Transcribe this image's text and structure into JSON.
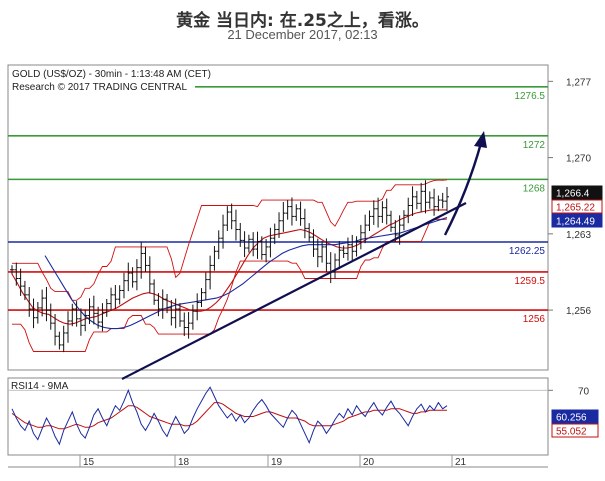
{
  "header": {
    "title": "黄金 当日内: 在.25之上，看涨。",
    "date": "21 December 2017, 02:13"
  },
  "chart_data": {
    "type": "candlestick",
    "instrument_label": "GOLD (US$/OZ) - 30min - 1:13:48 AM (CET)",
    "research_label": "Research © 2017 TRADING CENTRAL",
    "x_ticks": [
      "15",
      "18",
      "19",
      "20",
      "21"
    ],
    "price_axis": {
      "ticks": [
        1277,
        1270,
        1263,
        1256
      ],
      "tick_labels": [
        "1,277",
        "1,270",
        "1,263",
        "1,256"
      ],
      "ylim": [
        1250.5,
        1278.5
      ]
    },
    "price_levels": [
      {
        "label": "1276.5",
        "value": 1276.5,
        "color": "#3a9a3a",
        "kind": "resistance"
      },
      {
        "label": "1272",
        "value": 1272,
        "color": "#3a9a3a",
        "kind": "resistance"
      },
      {
        "label": "1268",
        "value": 1268,
        "color": "#3a9a3a",
        "kind": "resistance"
      },
      {
        "label": "1262.25",
        "value": 1262.25,
        "color": "#1a2aa0",
        "kind": "pivot"
      },
      {
        "label": "1259.5",
        "value": 1259.5,
        "color": "#d01010",
        "kind": "support"
      },
      {
        "label": "1256",
        "value": 1256,
        "color": "#d01010",
        "kind": "support"
      }
    ],
    "price_badges": [
      {
        "label": "1,266.4",
        "value": 1266.4,
        "bg": "#111111",
        "fg": "#ffffff"
      },
      {
        "label": "1,265.22",
        "value": 1265.22,
        "bg": "#ffffff",
        "fg": "#c01010"
      },
      {
        "label": "1,264.49",
        "value": 1264.49,
        "bg": "#1a2aa0",
        "fg": "#ffffff"
      }
    ],
    "price_series": [
      1259.7,
      1258.9,
      1258.2,
      1257.4,
      1256.1,
      1255.3,
      1256.2,
      1257.1,
      1256.0,
      1254.8,
      1253.6,
      1252.8,
      1253.9,
      1255.0,
      1256.1,
      1255.2,
      1254.6,
      1255.5,
      1256.3,
      1255.7,
      1254.9,
      1255.8,
      1256.6,
      1257.4,
      1257.0,
      1257.8,
      1258.7,
      1259.4,
      1258.6,
      1259.9,
      1261.2,
      1260.1,
      1258.4,
      1256.9,
      1256.1,
      1257.0,
      1256.2,
      1255.3,
      1256.1,
      1255.0,
      1254.4,
      1254.8,
      1255.9,
      1256.7,
      1257.6,
      1258.8,
      1260.1,
      1261.4,
      1262.6,
      1263.8,
      1265.0,
      1264.2,
      1263.4,
      1262.4,
      1261.7,
      1262.5,
      1261.6,
      1262.3,
      1261.1,
      1261.8,
      1262.6,
      1263.4,
      1264.2,
      1264.9,
      1265.5,
      1264.6,
      1265.3,
      1264.4,
      1263.5,
      1262.7,
      1261.6,
      1260.9,
      1261.8,
      1260.3,
      1259.5,
      1260.6,
      1261.5,
      1261.2,
      1262.0,
      1261.4,
      1262.3,
      1263.1,
      1263.8,
      1264.6,
      1265.3,
      1264.6,
      1265.4,
      1264.7,
      1263.6,
      1262.9,
      1263.8,
      1264.7,
      1265.6,
      1266.4,
      1265.8,
      1266.9,
      1265.9,
      1266.3,
      1265.5,
      1266.1,
      1266.0,
      1266.4
    ],
    "ma_red_series": [
      1259.3,
      1258.5,
      1257.6,
      1256.9,
      1256.2,
      1255.9,
      1255.7,
      1255.6,
      1255.3,
      1255.0,
      1254.8,
      1254.7,
      1254.8,
      1255.0,
      1255.2,
      1255.3,
      1255.4,
      1255.6,
      1255.8,
      1256.0,
      1256.2,
      1256.5,
      1256.8,
      1257.1,
      1257.3,
      1257.5,
      1257.6,
      1257.5,
      1257.3,
      1257.0,
      1256.8,
      1256.6,
      1256.4,
      1256.2,
      1256.0,
      1255.9,
      1255.9,
      1256.0,
      1256.3,
      1256.7,
      1257.2,
      1257.9,
      1258.6,
      1259.4,
      1260.2,
      1261.0,
      1261.7,
      1262.2,
      1262.6,
      1262.8,
      1262.9,
      1263.0,
      1263.1,
      1263.2,
      1263.3,
      1263.4,
      1263.3,
      1263.1,
      1262.8,
      1262.5,
      1262.2,
      1262.0,
      1261.8,
      1261.7,
      1261.7,
      1261.8,
      1262.0,
      1262.3,
      1262.6,
      1262.9,
      1263.2,
      1263.5,
      1263.8,
      1264.0,
      1264.3,
      1264.5,
      1264.7,
      1264.9,
      1265.0,
      1265.1,
      1265.2,
      1265.2,
      1265.2,
      1265.2
    ],
    "ma_blue_series": [
      1261.0,
      1260.0,
      1259.0,
      1258.0,
      1257.0,
      1256.2,
      1255.5,
      1255.0,
      1254.6,
      1254.4,
      1254.3,
      1254.3,
      1254.4,
      1254.6,
      1254.9,
      1255.2,
      1255.5,
      1255.8,
      1256.1,
      1256.3,
      1256.5,
      1256.6,
      1256.7,
      1256.8,
      1256.9,
      1257.0,
      1257.1,
      1257.3,
      1257.6,
      1258.0,
      1258.4,
      1258.9,
      1259.4,
      1259.9,
      1260.4,
      1260.8,
      1261.2,
      1261.5,
      1261.7,
      1261.9,
      1262.0,
      1262.0,
      1262.0,
      1262.0,
      1262.0,
      1262.1,
      1262.2,
      1262.3,
      1262.5,
      1262.6,
      1262.7,
      1262.8,
      1262.9,
      1263.0,
      1263.1,
      1263.3,
      1263.5,
      1263.7,
      1263.9,
      1264.1,
      1264.3,
      1264.5
    ],
    "rsi": {
      "label": "RSI14 - 9MA",
      "ticks": [
        70
      ],
      "ylim": [
        28,
        78
      ],
      "badges": [
        {
          "label": "60.256",
          "value": 60.256,
          "bg": "#1a2aa0",
          "fg": "#ffffff"
        },
        {
          "label": "55.052",
          "value": 55.052,
          "bg": "#ffffff",
          "fg": "#c01010"
        }
      ],
      "rsi_series": [
        58,
        52,
        47,
        44,
        50,
        42,
        38,
        45,
        52,
        47,
        40,
        35,
        44,
        50,
        56,
        48,
        42,
        39,
        46,
        54,
        58,
        52,
        47,
        54,
        60,
        57,
        63,
        70,
        62,
        56,
        48,
        44,
        49,
        55,
        50,
        44,
        40,
        47,
        53,
        48,
        42,
        45,
        52,
        58,
        63,
        68,
        72,
        66,
        60,
        56,
        52,
        55,
        50,
        54,
        49,
        52,
        57,
        61,
        64,
        60,
        55,
        52,
        49,
        46,
        52,
        57,
        54,
        48,
        42,
        36,
        44,
        50,
        47,
        42,
        46,
        51,
        55,
        52,
        58,
        54,
        60,
        56,
        53,
        58,
        62,
        57,
        54,
        59,
        63,
        58,
        55,
        51,
        47,
        53,
        58,
        61,
        56,
        60,
        57,
        62,
        58,
        60
      ],
      "ma_series": [
        55,
        53,
        51,
        49,
        48,
        47,
        46,
        46,
        47,
        47,
        46,
        45,
        45,
        46,
        47,
        48,
        47,
        46,
        46,
        47,
        49,
        50,
        51,
        52,
        54,
        56,
        58,
        60,
        60,
        59,
        57,
        55,
        53,
        52,
        51,
        50,
        49,
        48,
        48,
        48,
        47,
        47,
        48,
        50,
        53,
        56,
        59,
        62,
        62,
        61,
        59,
        57,
        55,
        54,
        53,
        53,
        53,
        54,
        55,
        56,
        56,
        55,
        54,
        53,
        52,
        52,
        52,
        51,
        50,
        48,
        47,
        47,
        47,
        47,
        47,
        48,
        49,
        50,
        52,
        53,
        54,
        55,
        56,
        56,
        57,
        57,
        57,
        57,
        58,
        58,
        58,
        57,
        56,
        55,
        55,
        56,
        56,
        57,
        57,
        57,
        57,
        57
      ]
    }
  }
}
